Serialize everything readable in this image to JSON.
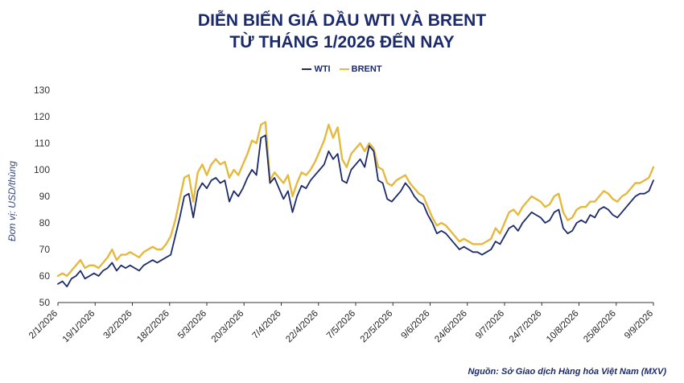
{
  "chart_data": {
    "type": "line",
    "title": "DIỄN BIẾN GIÁ DẦU WTI VÀ BRENT",
    "subtitle": "TỪ THÁNG 1/2026 ĐẾN NAY",
    "ylabel": "Đơn vị: USD/thùng",
    "ylim": [
      50,
      130
    ],
    "yticks": [
      50,
      60,
      70,
      80,
      90,
      100,
      110,
      120,
      130
    ],
    "xticks": [
      "2/1/2026",
      "19/1/2026",
      "3/2/2026",
      "18/2/2026",
      "5/3/2026",
      "20/3/2026",
      "7/4/2026",
      "22/4/2026",
      "7/5/2026",
      "22/5/2026",
      "9/6/2026",
      "24/6/2026",
      "9/7/2026",
      "24/7/2026",
      "10/8/2026",
      "25/8/2026",
      "9/9/2026"
    ],
    "legend_position": "top-center",
    "grid": false,
    "series": [
      {
        "name": "WTI",
        "color": "#1b2a6b",
        "values": [
          57,
          58,
          56,
          59,
          60,
          62,
          59,
          60,
          61,
          60,
          62,
          63,
          65,
          62,
          64,
          63,
          64,
          63,
          62,
          64,
          65,
          66,
          65,
          66,
          67,
          68,
          75,
          82,
          90,
          91,
          82,
          92,
          95,
          93,
          96,
          97,
          95,
          96,
          88,
          92,
          90,
          93,
          97,
          100,
          98,
          112,
          113,
          95,
          97,
          93,
          89,
          92,
          84,
          90,
          94,
          93,
          96,
          98,
          100,
          102,
          107,
          104,
          106,
          96,
          95,
          100,
          102,
          104,
          101,
          109,
          107,
          96,
          95,
          89,
          88,
          90,
          92,
          95,
          93,
          90,
          88,
          87,
          83,
          80,
          76,
          77,
          76,
          74,
          72,
          70,
          71,
          70,
          69,
          69,
          68,
          69,
          70,
          73,
          72,
          75,
          78,
          79,
          77,
          80,
          82,
          84,
          83,
          82,
          80,
          81,
          84,
          85,
          78,
          76,
          77,
          80,
          81,
          80,
          83,
          82,
          85,
          86,
          85,
          83,
          82,
          84,
          86,
          88,
          90,
          91,
          91,
          92,
          96
        ]
      },
      {
        "name": "BRENT",
        "color": "#e4b940",
        "values": [
          60,
          61,
          60,
          62,
          64,
          66,
          63,
          64,
          64,
          63,
          65,
          67,
          70,
          66,
          68,
          68,
          69,
          68,
          67,
          69,
          70,
          71,
          70,
          70,
          72,
          75,
          81,
          89,
          97,
          98,
          88,
          99,
          102,
          98,
          102,
          104,
          102,
          103,
          97,
          100,
          98,
          102,
          106,
          111,
          110,
          117,
          118,
          96,
          99,
          97,
          95,
          98,
          90,
          95,
          99,
          98,
          100,
          103,
          107,
          111,
          117,
          112,
          116,
          104,
          101,
          106,
          108,
          110,
          107,
          110,
          108,
          101,
          100,
          95,
          94,
          96,
          97,
          98,
          95,
          93,
          91,
          90,
          86,
          82,
          79,
          80,
          79,
          77,
          75,
          73,
          74,
          73,
          72,
          72,
          72,
          73,
          74,
          78,
          76,
          80,
          84,
          85,
          83,
          86,
          88,
          90,
          89,
          88,
          86,
          87,
          90,
          91,
          84,
          81,
          82,
          85,
          86,
          86,
          88,
          88,
          90,
          92,
          91,
          89,
          88,
          90,
          91,
          93,
          95,
          95,
          96,
          97,
          101
        ]
      }
    ],
    "source": "Nguồn: Sở Giao dịch Hàng hóa Việt Nam (MXV)"
  }
}
